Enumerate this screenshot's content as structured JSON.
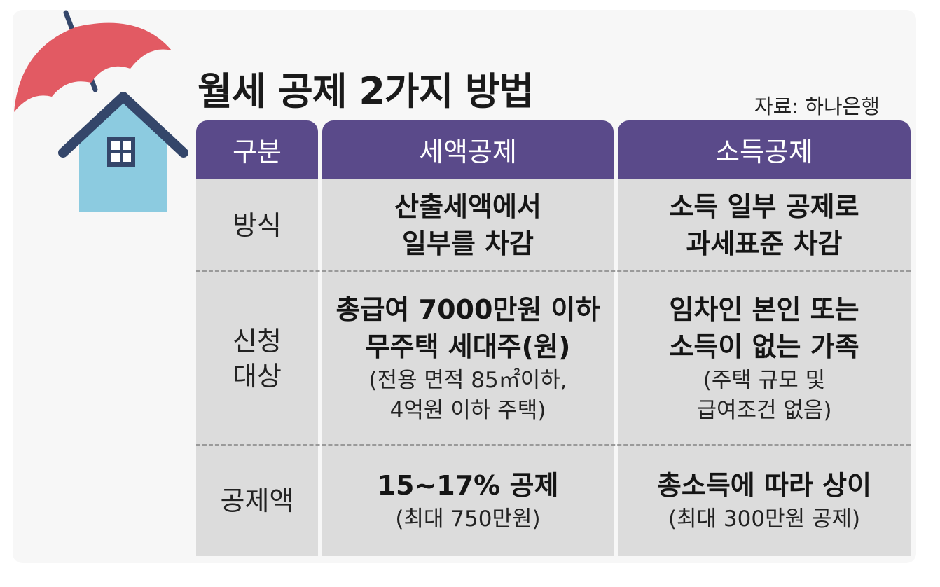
{
  "title": "월세 공제 2가지 방법",
  "source": "자료: 하나은행",
  "table": {
    "headers": [
      "구분",
      "세액공제",
      "소득공제"
    ],
    "rows": [
      {
        "label": "방식",
        "tax_credit": {
          "main": [
            "산출세액에서",
            "일부를 차감"
          ],
          "sub": []
        },
        "income_deduction": {
          "main": [
            "소득 일부 공제로",
            "과세표준 차감"
          ],
          "sub": []
        }
      },
      {
        "label": "신청\n대상",
        "tax_credit": {
          "main": [
            "총급여 7000만원 이하",
            "무주택 세대주(원)"
          ],
          "sub": [
            "(전용 면적 85㎡이하,",
            "4억원 이하 주택)"
          ]
        },
        "income_deduction": {
          "main": [
            "임차인 본인 또는",
            "소득이 없는 가족"
          ],
          "sub": [
            "(주택 규모 및",
            "급여조건 없음)"
          ]
        }
      },
      {
        "label": "공제액",
        "tax_credit": {
          "main": [
            "15~17% 공제"
          ],
          "sub": [
            "(최대 750만원)"
          ]
        },
        "income_deduction": {
          "main": [
            "총소득에 따라 상이"
          ],
          "sub": [
            "(최대 300만원 공제)"
          ]
        }
      }
    ]
  },
  "colors": {
    "header_bg": "#5a4a8a",
    "cell_bg": "#dcdcdc",
    "umbrella": "#e25a63",
    "house_wall": "#8ccbe0",
    "house_roof": "#34466a"
  },
  "icons": [
    "umbrella-icon",
    "house-icon"
  ]
}
